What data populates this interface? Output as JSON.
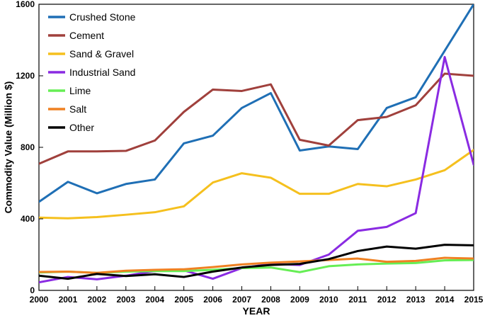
{
  "chart_data": {
    "type": "line",
    "xlabel": "YEAR",
    "ylabel": "Commodity Value (Million $)",
    "x": [
      2000,
      2001,
      2002,
      2003,
      2004,
      2005,
      2006,
      2007,
      2008,
      2009,
      2010,
      2011,
      2012,
      2013,
      2014,
      2015
    ],
    "xlim": [
      2000,
      2015
    ],
    "ylim": [
      0,
      1600
    ],
    "yticks": [
      0,
      400,
      800,
      1200,
      1600
    ],
    "legend_position": "top-left",
    "grid": false,
    "series": [
      {
        "name": "Crushed Stone",
        "color": "#1f6fb5",
        "values": [
          495,
          607,
          543,
          595,
          620,
          822,
          865,
          1020,
          1103,
          782,
          805,
          790,
          1020,
          1080,
          1340,
          1600
        ]
      },
      {
        "name": "Cement",
        "color": "#a0403c",
        "values": [
          708,
          777,
          777,
          780,
          838,
          998,
          1123,
          1115,
          1152,
          842,
          810,
          952,
          970,
          1035,
          1212,
          1200
        ]
      },
      {
        "name": "Sand & Gravel",
        "color": "#f5c01e",
        "values": [
          407,
          403,
          410,
          423,
          437,
          470,
          603,
          655,
          630,
          540,
          540,
          595,
          582,
          620,
          672,
          785
        ]
      },
      {
        "name": "Industrial Sand",
        "color": "#8a2be2",
        "values": [
          45,
          75,
          62,
          82,
          108,
          112,
          65,
          125,
          148,
          142,
          200,
          333,
          355,
          432,
          1305,
          703
        ]
      },
      {
        "name": "Lime",
        "color": "#66ee55",
        "values": [
          100,
          105,
          98,
          105,
          108,
          108,
          115,
          125,
          128,
          102,
          135,
          145,
          150,
          153,
          168,
          170
        ]
      },
      {
        "name": "Salt",
        "color": "#ef8122",
        "values": [
          103,
          105,
          98,
          110,
          115,
          118,
          130,
          145,
          155,
          162,
          170,
          178,
          160,
          165,
          182,
          178
        ]
      },
      {
        "name": "Other",
        "color": "#000000",
        "values": [
          82,
          65,
          92,
          80,
          90,
          75,
          105,
          128,
          142,
          148,
          175,
          220,
          245,
          233,
          255,
          252
        ]
      }
    ]
  }
}
